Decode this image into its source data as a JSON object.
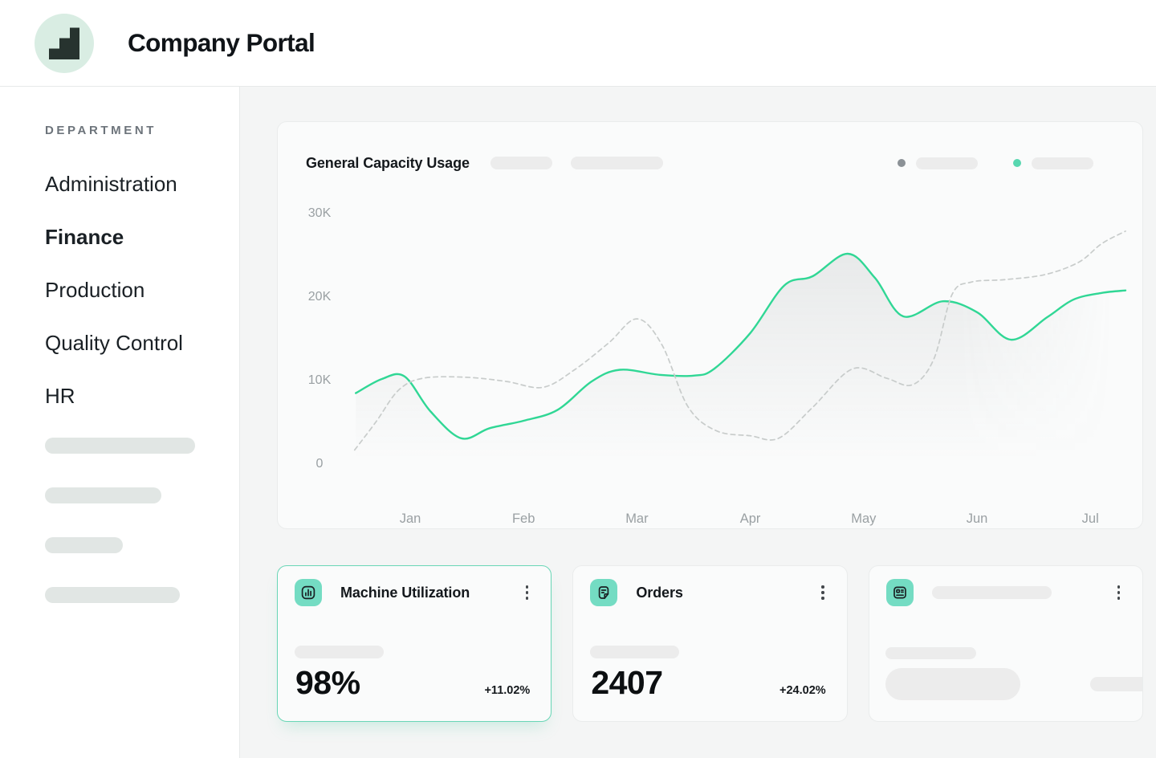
{
  "header": {
    "title": "Company Portal",
    "logo_icon": "stairs-icon"
  },
  "sidebar": {
    "section_label": "DEPARTMENT",
    "items": [
      {
        "label": "Administration",
        "active": false
      },
      {
        "label": "Finance",
        "active": true
      },
      {
        "label": "Production",
        "active": false
      },
      {
        "label": "Quality Control",
        "active": false
      },
      {
        "label": "HR",
        "active": false
      }
    ],
    "skeleton_widths": [
      187,
      145,
      97,
      168
    ]
  },
  "chart_card": {
    "title": "General Capacity Usage",
    "header_skeleton_widths": [
      77,
      115
    ],
    "legend": [
      {
        "dot_color": "#8b9196",
        "label_skeleton_width": 77
      },
      {
        "dot_color": "#58d7b0",
        "label_skeleton_width": 77
      }
    ]
  },
  "chart_data": {
    "type": "line",
    "title": "General Capacity Usage",
    "x_tick_labels": [
      "Jan",
      "Feb",
      "Mar",
      "Apr",
      "May",
      "Jun",
      "Jul"
    ],
    "y_ticks": [
      0,
      10,
      20,
      30
    ],
    "y_tick_labels": [
      "0",
      "10K",
      "20K",
      "30K"
    ],
    "ylim": [
      0,
      30
    ],
    "unit": "K",
    "grid": false,
    "legend_position": "top-right",
    "series": [
      {
        "name": "current",
        "style": "solid",
        "color": "#30d795",
        "area_fill": true,
        "points": [
          [
            -0.48,
            8.4
          ],
          [
            -0.25,
            10.1
          ],
          [
            -0.05,
            10.4
          ],
          [
            0.18,
            6.2
          ],
          [
            0.45,
            3.0
          ],
          [
            0.7,
            4.2
          ],
          [
            1.0,
            5.1
          ],
          [
            1.3,
            6.4
          ],
          [
            1.6,
            9.8
          ],
          [
            1.85,
            11.2
          ],
          [
            2.2,
            10.6
          ],
          [
            2.5,
            10.5
          ],
          [
            2.68,
            11.3
          ],
          [
            3.0,
            15.6
          ],
          [
            3.3,
            21.3
          ],
          [
            3.55,
            22.4
          ],
          [
            3.86,
            25.1
          ],
          [
            4.1,
            22.2
          ],
          [
            4.35,
            17.6
          ],
          [
            4.7,
            19.4
          ],
          [
            5.0,
            18.1
          ],
          [
            5.3,
            14.8
          ],
          [
            5.62,
            17.5
          ],
          [
            5.85,
            19.6
          ],
          [
            6.1,
            20.4
          ],
          [
            6.31,
            20.7
          ]
        ]
      },
      {
        "name": "previous",
        "style": "dashed",
        "color": "#c8cccb",
        "area_fill": false,
        "points": [
          [
            -0.49,
            1.6
          ],
          [
            -0.3,
            5.0
          ],
          [
            -0.1,
            8.8
          ],
          [
            0.12,
            10.2
          ],
          [
            0.5,
            10.3
          ],
          [
            0.85,
            9.8
          ],
          [
            1.17,
            9.1
          ],
          [
            1.45,
            11.2
          ],
          [
            1.75,
            14.4
          ],
          [
            2.0,
            17.3
          ],
          [
            2.22,
            14.2
          ],
          [
            2.45,
            6.8
          ],
          [
            2.7,
            3.9
          ],
          [
            3.0,
            3.3
          ],
          [
            3.25,
            3.0
          ],
          [
            3.55,
            6.7
          ],
          [
            3.9,
            11.3
          ],
          [
            4.2,
            10.2
          ],
          [
            4.43,
            9.4
          ],
          [
            4.62,
            12.5
          ],
          [
            4.78,
            20.2
          ],
          [
            4.95,
            21.7
          ],
          [
            5.25,
            22.0
          ],
          [
            5.6,
            22.6
          ],
          [
            5.9,
            24.1
          ],
          [
            6.1,
            26.3
          ],
          [
            6.31,
            27.8
          ]
        ]
      }
    ]
  },
  "stat_cards": [
    {
      "icon": "bar-chart-icon",
      "title": "Machine Utilization",
      "value": "98%",
      "delta": "+11.02%",
      "highlight": true
    },
    {
      "icon": "notepad-icon",
      "title": "Orders",
      "value": "2407",
      "delta": "+24.02%",
      "highlight": false
    },
    {
      "icon": "id-card-icon",
      "skeleton": true
    }
  ],
  "colors": {
    "accent_teal": "#35d999",
    "icon_teal": "#74dcc3",
    "logo_mint": "#d9ede3",
    "page_bg": "#f4f5f5",
    "card_bg": "#fafbfb",
    "muted_text": "#9aa0a3",
    "dark_text": "#14181c"
  }
}
